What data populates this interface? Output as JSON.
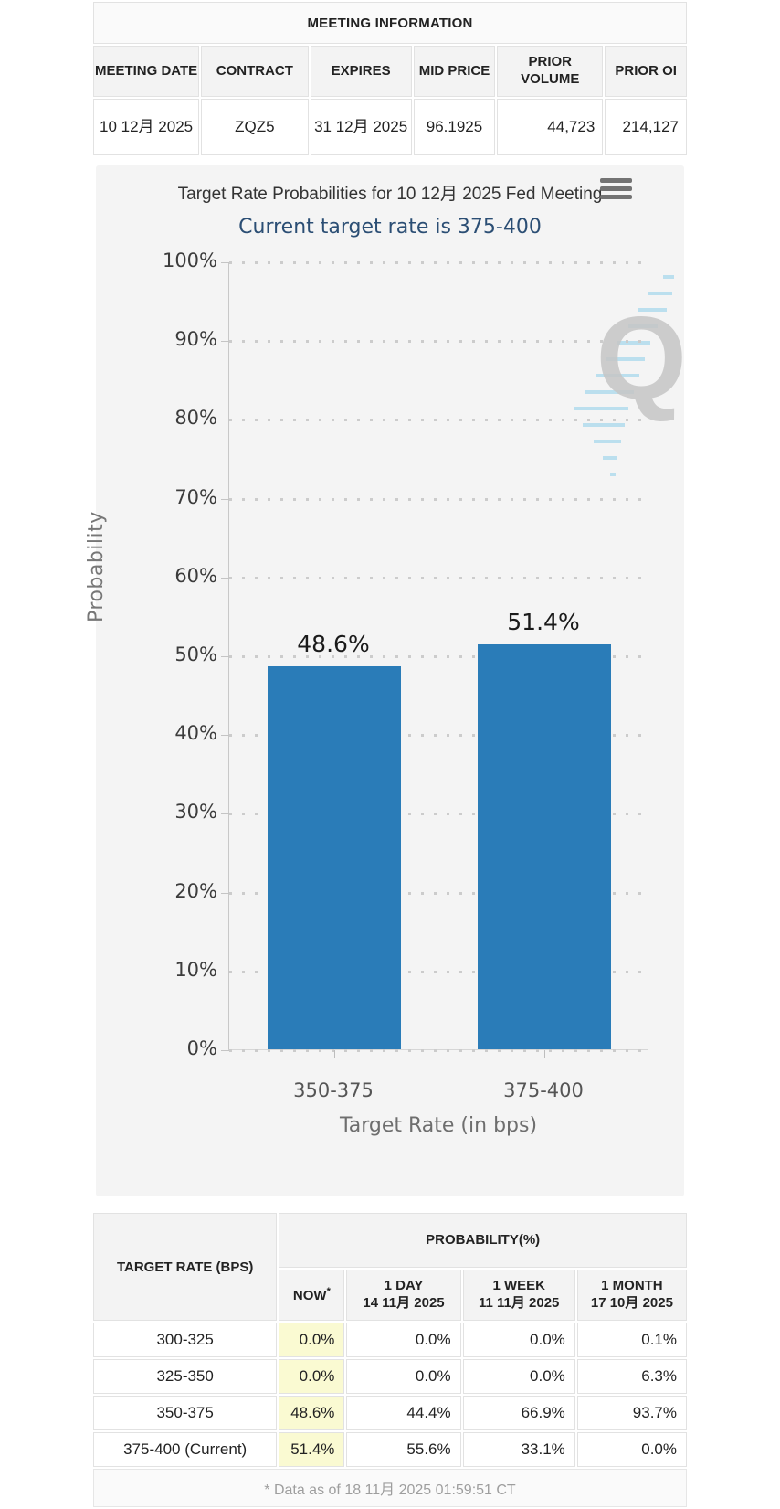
{
  "meeting_info": {
    "title": "MEETING INFORMATION",
    "columns": {
      "meeting_date": "MEETING DATE",
      "contract": "CONTRACT",
      "expires": "EXPIRES",
      "mid_price": "MID PRICE",
      "prior_volume": "PRIOR VOLUME",
      "prior_oi": "PRIOR OI"
    },
    "row": {
      "meeting_date": "10 12月 2025",
      "contract": "ZQZ5",
      "expires": "31 12月 2025",
      "mid_price": "96.1925",
      "prior_volume": "44,723",
      "prior_oi": "214,127"
    }
  },
  "chart": {
    "title": "Target Rate Probabilities for 10 12月 2025 Fed Meeting",
    "subtitle": "Current target rate is 375-400",
    "watermark_letter": "Q"
  },
  "chart_data": {
    "type": "bar",
    "categories": [
      "350-375",
      "375-400"
    ],
    "values": [
      48.6,
      51.4
    ],
    "value_labels": [
      "48.6%",
      "51.4%"
    ],
    "title": "Target Rate Probabilities for 10 12月 2025 Fed Meeting",
    "subtitle": "Current target rate is 375-400",
    "xlabel": "Target Rate (in bps)",
    "ylabel": "Probability",
    "ylim": [
      0,
      100
    ],
    "ytick_labels": [
      "0%",
      "10%",
      "20%",
      "30%",
      "40%",
      "50%",
      "60%",
      "70%",
      "80%",
      "90%",
      "100%"
    ],
    "grid": "dotted-horizontal",
    "legend": "none",
    "bar_color": "#2a7cb8"
  },
  "prob_table": {
    "row_header": "TARGET RATE (BPS)",
    "group_header": "PROBABILITY(%)",
    "sub_columns": [
      {
        "label": "NOW",
        "sup": "*",
        "date": ""
      },
      {
        "label": "1 DAY",
        "date": "14 11月 2025"
      },
      {
        "label": "1 WEEK",
        "date": "11 11月 2025"
      },
      {
        "label": "1 MONTH",
        "date": "17 10月 2025"
      }
    ],
    "rows": [
      {
        "target": "300-325",
        "now": "0.0%",
        "day": "0.0%",
        "week": "0.0%",
        "month": "0.1%"
      },
      {
        "target": "325-350",
        "now": "0.0%",
        "day": "0.0%",
        "week": "0.0%",
        "month": "6.3%"
      },
      {
        "target": "350-375",
        "now": "48.6%",
        "day": "44.4%",
        "week": "66.9%",
        "month": "93.7%"
      },
      {
        "target": "375-400 (Current)",
        "now": "51.4%",
        "day": "55.6%",
        "week": "33.1%",
        "month": "0.0%"
      }
    ],
    "footnote": "* Data as of 18 11月 2025 01:59:51 CT",
    "highlight_color": "#fafad2"
  }
}
